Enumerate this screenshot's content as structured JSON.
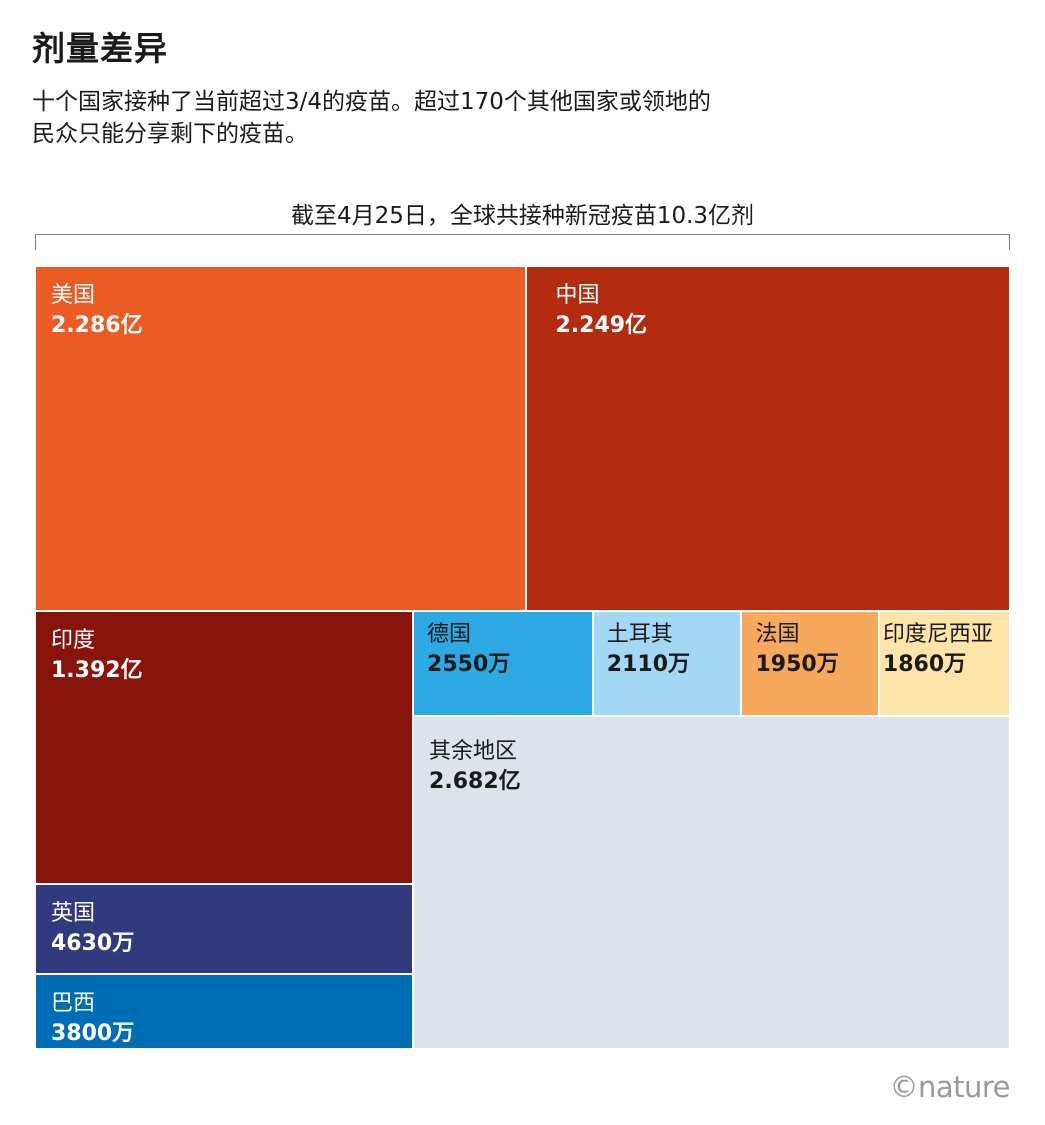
{
  "header": {
    "title": "剂量差异",
    "subtitle_line1": "十个国家接种了当前超过3/4的疫苗。超过170个其他国家或领地的",
    "subtitle_line2": "民众只能分享剩下的疫苗。",
    "total_label": "截至4月25日，全球共接种新冠疫苗10.3亿剂"
  },
  "chart_data": {
    "type": "treemap",
    "unit": "doses",
    "total": {
      "value": 1030000000,
      "label": "10.3亿"
    },
    "items": [
      {
        "name": "美国",
        "label": "2.286亿",
        "value": 228600000,
        "color": "#eb5b24",
        "text": "light"
      },
      {
        "name": "中国",
        "label": "2.249亿",
        "value": 224900000,
        "color": "#b32c10",
        "text": "light"
      },
      {
        "name": "印度",
        "label": "1.392亿",
        "value": 139200000,
        "color": "#87150c",
        "text": "light"
      },
      {
        "name": "英国",
        "label": "4630万",
        "value": 46300000,
        "color": "#323a7e",
        "text": "light"
      },
      {
        "name": "巴西",
        "label": "3800万",
        "value": 38000000,
        "color": "#006db7",
        "text": "light"
      },
      {
        "name": "德国",
        "label": "2550万",
        "value": 25500000,
        "color": "#2ca9e3",
        "text": "dark"
      },
      {
        "name": "土耳其",
        "label": "2110万",
        "value": 21100000,
        "color": "#a3d8f5",
        "text": "dark"
      },
      {
        "name": "法国",
        "label": "1950万",
        "value": 19500000,
        "color": "#f6a85c",
        "text": "dark"
      },
      {
        "name": "印度尼西亚",
        "label": "1860万",
        "value": 18600000,
        "color": "#fee4a9",
        "text": "dark"
      },
      {
        "name": "其余地区",
        "label": "2.682亿",
        "value": 268200000,
        "color": "#dde3eb",
        "text": "dark"
      }
    ]
  },
  "footer": {
    "logo": "©nature"
  }
}
